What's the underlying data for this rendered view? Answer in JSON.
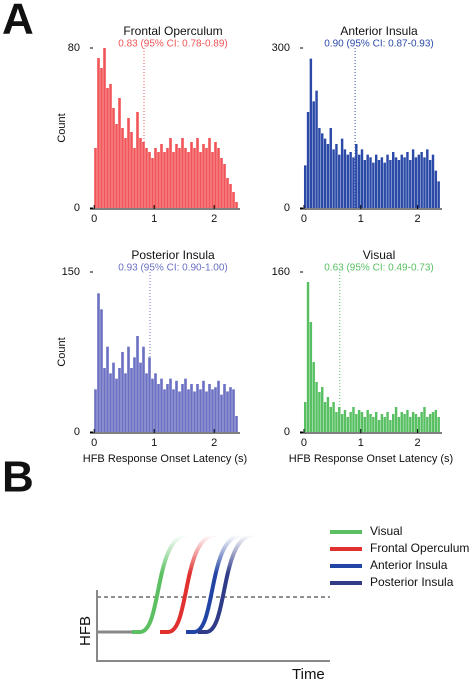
{
  "panel_labels": [
    "A",
    "B"
  ],
  "chart_data": [
    {
      "type": "histogram",
      "title": "Frontal Operculum",
      "annotation": "0.83 (95% CI: 0.78-0.89)",
      "median": 0.83,
      "color": "#f25558",
      "y_label": "Count",
      "bins": [
        0,
        0.05,
        0.1,
        0.15,
        0.2,
        0.25,
        0.3,
        0.35,
        0.4,
        0.45,
        0.5,
        0.55,
        0.6,
        0.65,
        0.7,
        0.75,
        0.8,
        0.85,
        0.9,
        0.95,
        1,
        1.05,
        1.1,
        1.15,
        1.2,
        1.25,
        1.3,
        1.35,
        1.4,
        1.45,
        1.5,
        1.55,
        1.6,
        1.65,
        1.7,
        1.75,
        1.8,
        1.85,
        1.9,
        1.95,
        2,
        2.05,
        2.1,
        2.15,
        2.2,
        2.25,
        2.3,
        2.35,
        2.4
      ],
      "values": [
        30,
        75,
        70,
        80,
        60,
        62,
        50,
        42,
        55,
        40,
        35,
        45,
        38,
        30,
        48,
        35,
        33,
        30,
        28,
        25,
        30,
        28,
        32,
        28,
        30,
        35,
        28,
        32,
        30,
        35,
        30,
        28,
        33,
        30,
        35,
        28,
        32,
        30,
        35,
        28,
        33,
        30,
        25,
        22,
        15,
        12,
        8,
        3
      ],
      "xlim": [
        -0.07,
        2.43
      ],
      "xticks": [
        0,
        1,
        2
      ],
      "ylim": [
        0,
        80
      ],
      "yticks": [
        0,
        80
      ]
    },
    {
      "type": "histogram",
      "title": "Anterior Insula",
      "annotation": "0.90 (95% CI: 0.87-0.93)",
      "median": 0.9,
      "color": "#2b4aa8",
      "bins": [
        0,
        0.05,
        0.1,
        0.15,
        0.2,
        0.25,
        0.3,
        0.35,
        0.4,
        0.45,
        0.5,
        0.55,
        0.6,
        0.65,
        0.7,
        0.75,
        0.8,
        0.85,
        0.9,
        0.95,
        1,
        1.05,
        1.1,
        1.15,
        1.2,
        1.25,
        1.3,
        1.35,
        1.4,
        1.45,
        1.5,
        1.55,
        1.6,
        1.65,
        1.7,
        1.75,
        1.8,
        1.85,
        1.9,
        1.95,
        2,
        2.05,
        2.1,
        2.15,
        2.2,
        2.25,
        2.3,
        2.35,
        2.4
      ],
      "values": [
        80,
        180,
        280,
        200,
        220,
        150,
        140,
        130,
        120,
        150,
        110,
        120,
        100,
        130,
        110,
        100,
        105,
        95,
        120,
        100,
        110,
        90,
        100,
        95,
        85,
        100,
        90,
        95,
        85,
        100,
        90,
        105,
        95,
        90,
        100,
        95,
        105,
        90,
        110,
        95,
        100,
        105,
        95,
        110,
        90,
        100,
        70,
        50
      ],
      "xlim": [
        -0.07,
        2.43
      ],
      "xticks": [
        0,
        1,
        2
      ],
      "ylim": [
        0,
        300
      ],
      "yticks": [
        0,
        300
      ]
    },
    {
      "type": "histogram",
      "title": "Posterior Insula",
      "annotation": "0.93 (95% CI: 0.90-1.00)",
      "median": 0.93,
      "color": "#6a70c2",
      "y_label": "Count",
      "x_label": "HFB Response Onset Latency (s)",
      "bins": [
        0,
        0.05,
        0.1,
        0.15,
        0.2,
        0.25,
        0.3,
        0.35,
        0.4,
        0.45,
        0.5,
        0.55,
        0.6,
        0.65,
        0.7,
        0.75,
        0.8,
        0.85,
        0.9,
        0.95,
        1,
        1.05,
        1.1,
        1.15,
        1.2,
        1.25,
        1.3,
        1.35,
        1.4,
        1.45,
        1.5,
        1.55,
        1.6,
        1.65,
        1.7,
        1.75,
        1.8,
        1.85,
        1.9,
        1.95,
        2,
        2.05,
        2.1,
        2.15,
        2.2,
        2.25,
        2.3,
        2.35,
        2.4
      ],
      "values": [
        40,
        130,
        115,
        60,
        80,
        55,
        65,
        50,
        60,
        75,
        55,
        80,
        60,
        70,
        90,
        65,
        80,
        55,
        70,
        50,
        55,
        45,
        50,
        40,
        45,
        50,
        40,
        48,
        38,
        45,
        50,
        40,
        45,
        38,
        45,
        40,
        48,
        38,
        45,
        40,
        42,
        48,
        35,
        45,
        38,
        42,
        40,
        15
      ],
      "xlim": [
        -0.07,
        2.43
      ],
      "xticks": [
        0,
        1,
        2
      ],
      "ylim": [
        0,
        150
      ],
      "yticks": [
        0,
        150
      ]
    },
    {
      "type": "histogram",
      "title": "Visual",
      "annotation": "0.63 (95% CI: 0.49-0.73)",
      "median": 0.63,
      "color": "#58c062",
      "x_label": "HFB Response Onset Latency (s)",
      "bins": [
        0,
        0.05,
        0.1,
        0.15,
        0.2,
        0.25,
        0.3,
        0.35,
        0.4,
        0.45,
        0.5,
        0.55,
        0.6,
        0.65,
        0.7,
        0.75,
        0.8,
        0.85,
        0.9,
        0.95,
        1,
        1.05,
        1.1,
        1.15,
        1.2,
        1.25,
        1.3,
        1.35,
        1.4,
        1.45,
        1.5,
        1.55,
        1.6,
        1.65,
        1.7,
        1.75,
        1.8,
        1.85,
        1.9,
        1.95,
        2,
        2.05,
        2.1,
        2.15,
        2.2,
        2.25,
        2.3,
        2.35,
        2.4
      ],
      "values": [
        30,
        150,
        110,
        70,
        50,
        40,
        45,
        30,
        35,
        25,
        30,
        20,
        25,
        18,
        22,
        15,
        20,
        25,
        18,
        22,
        20,
        15,
        22,
        18,
        15,
        20,
        12,
        18,
        15,
        20,
        12,
        18,
        25,
        15,
        20,
        18,
        22,
        15,
        20,
        18,
        15,
        20,
        25,
        15,
        18,
        20,
        22,
        15
      ],
      "xlim": [
        -0.07,
        2.43
      ],
      "xticks": [
        0,
        1,
        2
      ],
      "ylim": [
        0,
        160
      ],
      "yticks": [
        0,
        160
      ]
    }
  ],
  "diagram": {
    "legend": [
      {
        "name": "Visual",
        "color": "#5cc063"
      },
      {
        "name": "Frontal Operculum",
        "color": "#e0302f"
      },
      {
        "name": "Anterior Insula",
        "color": "#2244a4"
      },
      {
        "name": "Posterior Insula",
        "color": "#303c88"
      }
    ],
    "x_label": "Time",
    "y_label": "HFB"
  }
}
